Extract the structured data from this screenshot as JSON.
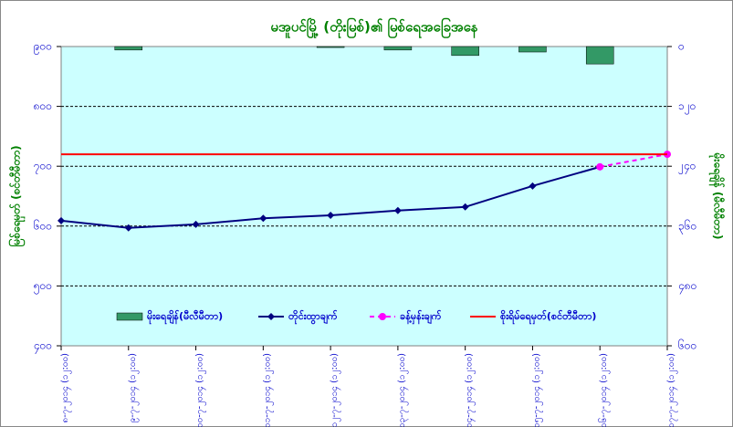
{
  "chart_data": {
    "type": "combo",
    "title": "မအူပင်မြို့ (တိုးမြစ်)၏ မြစ်ရေအခြေအနေ",
    "ylabel": "မြစ်ရေမှတ် (စင်တီမီတာ)",
    "y2label": "မိုးရေချိန် (မီလီမီတာ)",
    "categories": [
      "၈-၇-၂၀၁၄ (၁၂:၀၀)",
      "၉-၇-၂၀၁၄ (၁၂:၀၀)",
      "၁၀-၇-၂၀၁၄ (၁၂:၀၀)",
      "၁၁-၇-၂၀၁၄ (၁၂:၀၀)",
      "၁၂-၇-၂၀၁၄ (၁၂:၀၀)",
      "၁၃-၇-၂၀၁၄ (၁၂:၀၀)",
      "၁၄-၇-၂၀၁၄ (၁၂:၀၀)",
      "၁၅-၇-၂၀၁၄ (၁၂:၀၀)",
      "၁၆-၇-၂၀၁၄ (၁၂:၀၀)",
      "၁၇-၇-၂၀၁၄ (၁၂:၀၀)"
    ],
    "series": [
      {
        "name": "မိုးရေချိန်(မီလီမီတာ)",
        "type": "bar",
        "axis": "y2",
        "color": "#339966",
        "values": [
          null,
          7,
          null,
          null,
          2,
          7,
          18,
          11,
          35,
          null
        ]
      },
      {
        "name": "တိုင်းထွာချက်",
        "type": "line",
        "color": "#000080",
        "values": [
          609,
          597,
          603,
          613,
          618,
          626,
          632,
          667,
          699,
          null
        ]
      },
      {
        "name": "ခန့်မှန်းချက်",
        "type": "dashed",
        "color": "#ff00ff",
        "values": [
          null,
          null,
          null,
          null,
          null,
          null,
          null,
          null,
          699,
          720
        ]
      },
      {
        "name": "စိုးရိမ်ရေမှတ်(စင်တီမီတာ)",
        "type": "hline",
        "color": "#ff0000",
        "value": 720
      }
    ],
    "ylim": [
      400,
      900
    ],
    "yticks": [
      {
        "value": 400,
        "label": "၄၀၀"
      },
      {
        "value": 500,
        "label": "၅၀၀"
      },
      {
        "value": 600,
        "label": "၆၀၀"
      },
      {
        "value": 700,
        "label": "၇၀၀"
      },
      {
        "value": 800,
        "label": "၈၀၀"
      },
      {
        "value": 900,
        "label": "၉၀၀"
      }
    ],
    "y2lim": [
      0,
      600
    ],
    "y2ticks": [
      {
        "value": 0,
        "label": "၀"
      },
      {
        "value": 120,
        "label": "၁၂၀"
      },
      {
        "value": 240,
        "label": "၂၄၀"
      },
      {
        "value": 360,
        "label": "၃၆၀"
      },
      {
        "value": 480,
        "label": "၄၈၀"
      },
      {
        "value": 600,
        "label": "၆၀၀"
      }
    ],
    "y2_inverted": true,
    "grid": true,
    "plot_background": "#ccffff",
    "legend": "bottom"
  }
}
